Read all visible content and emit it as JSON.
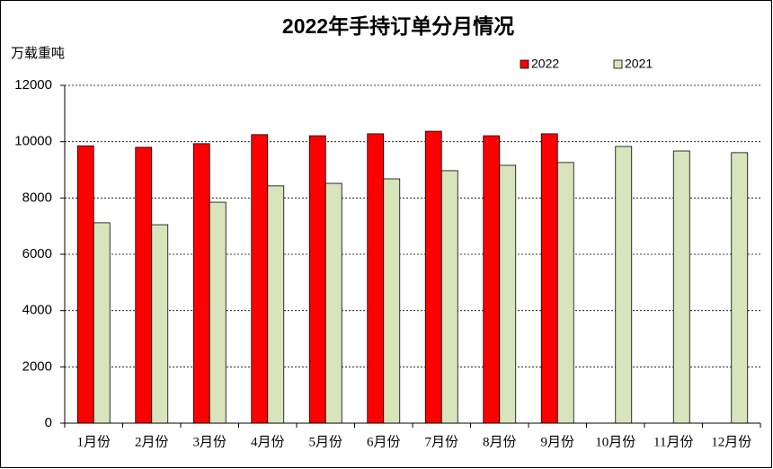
{
  "chart_data": {
    "type": "bar",
    "title": "2022年手持订单分月情况",
    "y_label": "万载重吨",
    "categories": [
      "1月份",
      "2月份",
      "3月份",
      "4月份",
      "5月份",
      "6月份",
      "7月份",
      "8月份",
      "9月份",
      "10月份",
      "11月份",
      "12月份"
    ],
    "series": [
      {
        "name": "2022",
        "color": "#ff0000",
        "values": [
          9850,
          9800,
          9930,
          10250,
          10210,
          10280,
          10370,
          10210,
          10280,
          null,
          null,
          null
        ]
      },
      {
        "name": "2021",
        "color": "#d8e4bc",
        "values": [
          7120,
          7050,
          7850,
          8430,
          8520,
          8680,
          8970,
          9160,
          9260,
          9830,
          9670,
          9610
        ]
      }
    ],
    "ylim": [
      0,
      12000
    ],
    "yticks": [
      0,
      2000,
      4000,
      6000,
      8000,
      10000,
      12000
    ],
    "grid": true
  }
}
